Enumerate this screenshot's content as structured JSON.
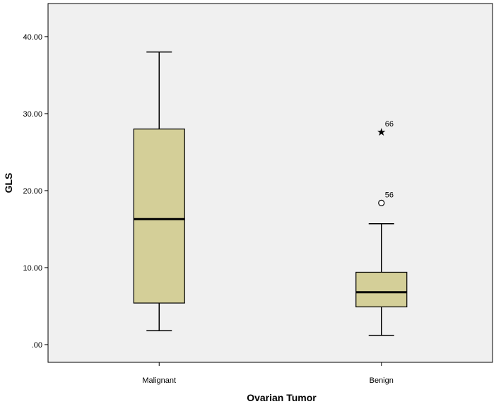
{
  "chart_data": {
    "type": "boxplot",
    "xlabel": "Ovarian Tumor",
    "ylabel": "GLS",
    "ylim": [
      -2.3,
      44.3
    ],
    "yticks": [
      0,
      10,
      20,
      30,
      40
    ],
    "ytick_labels": [
      ".00",
      "10.00",
      "20.00",
      "30.00",
      "40.00"
    ],
    "grid": false,
    "colors": {
      "box_fill": "#d4cf98",
      "plot_bg": "#f0f0f0",
      "line": "#000000"
    },
    "categories": [
      "Malignant",
      "Benign"
    ],
    "boxes": [
      {
        "category": "Malignant",
        "whisker_low": 1.8,
        "q1": 5.4,
        "median": 16.3,
        "q3": 28.0,
        "whisker_high": 38.0,
        "outliers": []
      },
      {
        "category": "Benign",
        "whisker_low": 1.2,
        "q1": 4.9,
        "median": 6.8,
        "q3": 9.4,
        "whisker_high": 15.7,
        "outliers": [
          {
            "value": 18.4,
            "label": "56",
            "marker": "circle"
          },
          {
            "value": 27.6,
            "label": "66",
            "marker": "star"
          }
        ]
      }
    ]
  }
}
